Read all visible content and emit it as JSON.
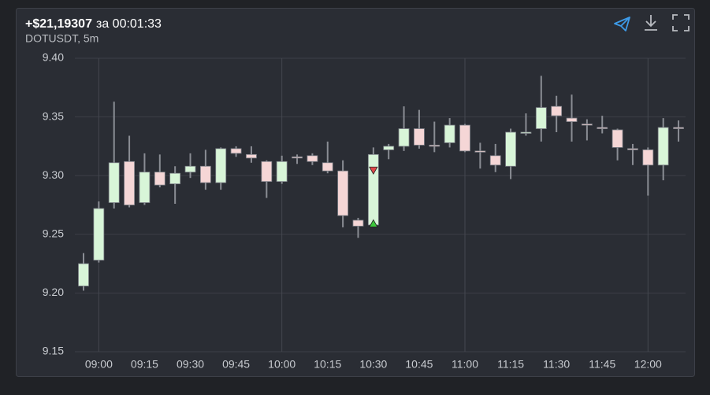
{
  "chart_data": {
    "type": "candlestick",
    "title": "+$21,19307",
    "title_suffix": "за 00:01:33",
    "subtitle": "DOTUSDT, 5m",
    "categories": [
      null,
      "09:00",
      null,
      null,
      "09:15",
      null,
      null,
      "09:30",
      null,
      null,
      "09:45",
      null,
      null,
      "10:00",
      null,
      null,
      "10:15",
      null,
      null,
      "10:30",
      null,
      null,
      "10:45",
      null,
      null,
      "11:00",
      null,
      null,
      "11:15",
      null,
      null,
      "11:30",
      null,
      null,
      "11:45",
      null,
      null,
      "12:00",
      null,
      null
    ],
    "series": [
      {
        "open": [
          9.206,
          9.228,
          9.277,
          9.312,
          9.277,
          9.303,
          9.293,
          9.303,
          9.308,
          9.294,
          9.323,
          9.318,
          9.312,
          9.295,
          9.316,
          9.317,
          9.311,
          9.304,
          9.262,
          9.258,
          9.322,
          9.325,
          9.34,
          9.326,
          9.328,
          9.343,
          9.321,
          9.317,
          9.308,
          9.336,
          9.34,
          9.359,
          9.349,
          9.344,
          9.341,
          9.339,
          9.323,
          9.322,
          9.309,
          9.341
        ],
        "high": [
          9.234,
          9.278,
          9.363,
          9.334,
          9.319,
          9.318,
          9.308,
          9.319,
          9.322,
          9.324,
          9.325,
          9.325,
          9.313,
          9.317,
          9.318,
          9.319,
          9.329,
          9.313,
          9.264,
          9.324,
          9.327,
          9.359,
          9.356,
          9.346,
          9.349,
          9.344,
          9.328,
          9.327,
          9.34,
          9.353,
          9.385,
          9.368,
          9.369,
          9.348,
          9.351,
          9.34,
          9.327,
          9.324,
          9.349,
          9.347
        ],
        "low": [
          9.202,
          9.226,
          9.272,
          9.273,
          9.275,
          9.29,
          9.276,
          9.298,
          9.288,
          9.288,
          9.316,
          9.311,
          9.281,
          9.293,
          9.31,
          9.309,
          9.302,
          9.256,
          9.247,
          9.257,
          9.314,
          9.321,
          9.323,
          9.32,
          9.324,
          9.32,
          9.306,
          9.303,
          9.297,
          9.334,
          9.329,
          9.337,
          9.329,
          9.33,
          9.336,
          9.313,
          9.309,
          9.283,
          9.296,
          9.329
        ],
        "close": [
          9.225,
          9.272,
          9.311,
          9.275,
          9.303,
          9.292,
          9.302,
          9.308,
          9.294,
          9.323,
          9.319,
          9.315,
          9.295,
          9.312,
          9.315,
          9.312,
          9.304,
          9.266,
          9.257,
          9.318,
          9.325,
          9.34,
          9.326,
          9.325,
          9.343,
          9.321,
          9.32,
          9.309,
          9.337,
          9.337,
          9.358,
          9.351,
          9.346,
          9.343,
          9.34,
          9.324,
          9.322,
          9.309,
          9.341,
          9.34
        ],
        "up_color": "#d8f5d8",
        "down_color": "#f5d6d6",
        "wick_color": "#8a8d94"
      }
    ],
    "markers": [
      {
        "index": 19,
        "value": 9.304,
        "shape": "down",
        "color": "#e04848"
      },
      {
        "index": 19,
        "value": 9.259,
        "shape": "up",
        "color": "#3cc83c"
      }
    ],
    "ylim": [
      9.15,
      9.4
    ],
    "yticks": [
      {
        "value": 9.15,
        "label": "9.15"
      },
      {
        "value": 9.2,
        "label": "9.20"
      },
      9.25,
      {
        "value": 9.3,
        "label": "9.30"
      },
      9.35,
      {
        "value": 9.4,
        "label": "9.40"
      }
    ],
    "grid": true
  }
}
